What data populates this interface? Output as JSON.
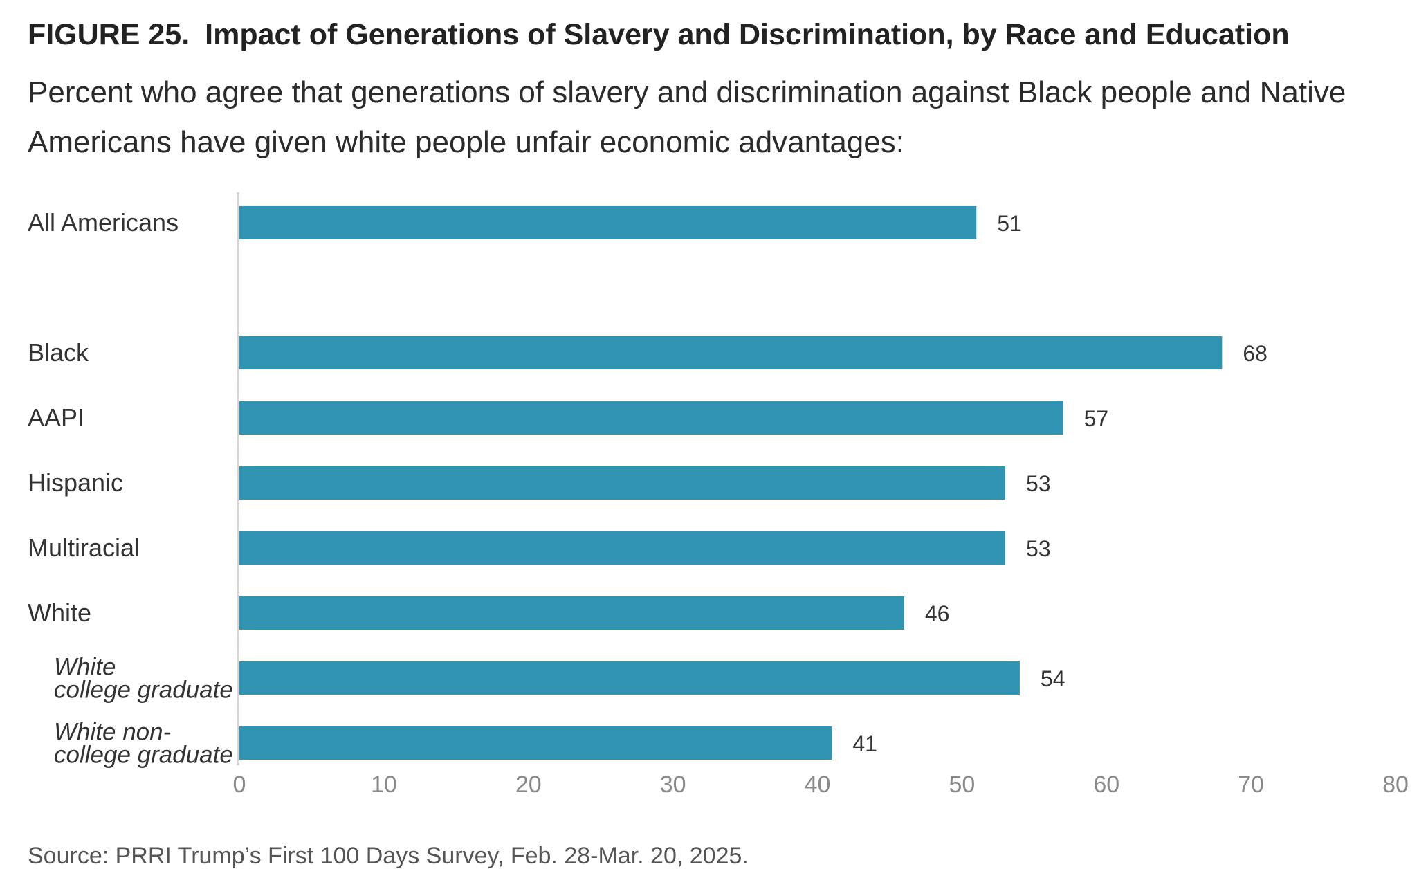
{
  "header": {
    "figure_number": "FIGURE 25.",
    "title": "Impact of Generations of Slavery and Discrimination, by Race and Education",
    "subtitle": "Percent who agree that generations of slavery and discrimination against Black people and Native Americans have given white people unfair economic advantages:"
  },
  "chart_data": {
    "type": "bar",
    "orientation": "horizontal",
    "title": "Impact of Generations of Slavery and Discrimination, by Race and Education",
    "categories": [
      {
        "lines": [
          "All Americans"
        ],
        "italic": false,
        "gap_before": false
      },
      {
        "lines": [
          "Black"
        ],
        "italic": false,
        "gap_before": true
      },
      {
        "lines": [
          "AAPI"
        ],
        "italic": false,
        "gap_before": false
      },
      {
        "lines": [
          "Hispanic"
        ],
        "italic": false,
        "gap_before": false
      },
      {
        "lines": [
          "Multiracial"
        ],
        "italic": false,
        "gap_before": false
      },
      {
        "lines": [
          "White"
        ],
        "italic": false,
        "gap_before": false
      },
      {
        "lines": [
          "White",
          "college graduate"
        ],
        "italic": true,
        "gap_before": false
      },
      {
        "lines": [
          "White non-",
          "college graduate"
        ],
        "italic": true,
        "gap_before": false
      }
    ],
    "values": [
      51,
      68,
      57,
      53,
      53,
      46,
      54,
      41
    ],
    "data_labels": [
      "51",
      "68",
      "57",
      "53",
      "53",
      "46",
      "54",
      "41"
    ],
    "xlim": [
      0,
      80
    ],
    "xticks": [
      0,
      10,
      20,
      30,
      40,
      50,
      60,
      70,
      80
    ],
    "xlabel": "",
    "ylabel": "",
    "grid": false,
    "legend": "none",
    "colors": {
      "bar": "#3194b2",
      "axis": "#d6d6d6",
      "tick_label": "#8a8a8a",
      "category_label": "#333333",
      "value_label": "#333333"
    }
  },
  "footer": {
    "source": "Source: PRRI Trump’s First 100 Days Survey, Feb. 28-Mar. 20, 2025."
  }
}
